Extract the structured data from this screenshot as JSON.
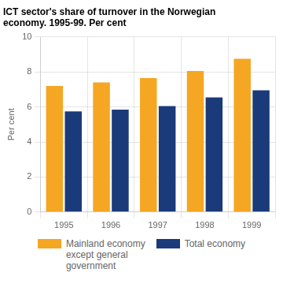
{
  "chart_data": {
    "type": "bar",
    "title": "ICT sector's share of turnover in the Norwegian\neconomy. 1995-99. Per cent",
    "y_label": "Per cent",
    "categories": [
      "1995",
      "1996",
      "1997",
      "1998",
      "1999"
    ],
    "series": [
      {
        "name": "Mainland economy\nexcept general\ngovernment",
        "color": "#F5A623",
        "values": [
          7.2,
          7.4,
          7.65,
          8.05,
          8.75
        ]
      },
      {
        "name": "Total economy",
        "color": "#1A3A7A",
        "values": [
          5.75,
          5.85,
          6.05,
          6.55,
          6.95
        ]
      }
    ],
    "ylim": [
      0,
      10
    ],
    "yticks": [
      0,
      2,
      4,
      6,
      8,
      10
    ],
    "grid": true,
    "legend": "bottom"
  }
}
